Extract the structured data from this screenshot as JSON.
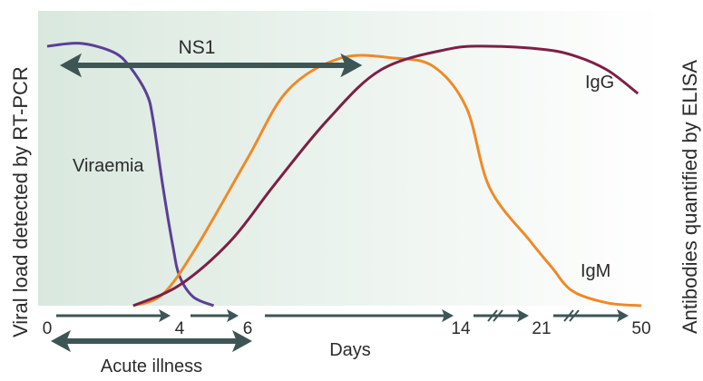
{
  "chart_data": {
    "type": "line",
    "ylabel_left": "Viral load detected by RT-PCR",
    "ylabel_right": "Antibodies quantified by ELISA",
    "xlabel": "Days",
    "x_ticks": [
      "0",
      "4",
      "6",
      "14",
      "21",
      "50"
    ],
    "axis_breaks": [
      "14-21",
      "21-50"
    ],
    "grid": false,
    "colors": {
      "viraemia": "#5b3f96",
      "igm": "#ee8a27",
      "igg": "#7d1f46",
      "arrow": "#3e5556",
      "background": "#dde9e1"
    },
    "series": [
      {
        "name": "Viraemia",
        "x": [
          0,
          1,
          2,
          2.5,
          3,
          3.2,
          3.5,
          3.8,
          4,
          4.4,
          5
        ],
        "y": [
          0.88,
          0.89,
          0.86,
          0.81,
          0.72,
          0.63,
          0.4,
          0.2,
          0.1,
          0.03,
          0
        ]
      },
      {
        "name": "IgM",
        "x": [
          2.6,
          3.5,
          4.5,
          6,
          7.5,
          9.5,
          11.5,
          13,
          14.5,
          16.5,
          20,
          24,
          30,
          40,
          50
        ],
        "y": [
          0,
          0.04,
          0.2,
          0.5,
          0.73,
          0.84,
          0.84,
          0.81,
          0.67,
          0.4,
          0.22,
          0.13,
          0.05,
          0.01,
          0
        ]
      },
      {
        "name": "IgG",
        "x": [
          2.6,
          4,
          5.5,
          7,
          9,
          11,
          13.5,
          16.5,
          21,
          30,
          40,
          49
        ],
        "y": [
          0,
          0.07,
          0.22,
          0.41,
          0.63,
          0.8,
          0.87,
          0.88,
          0.87,
          0.85,
          0.8,
          0.72
        ]
      }
    ],
    "ranges": [
      {
        "name": "NS1",
        "from": 0,
        "to": 10.3
      },
      {
        "name": "Acute illness",
        "from": 0,
        "to": 6.5
      }
    ]
  }
}
